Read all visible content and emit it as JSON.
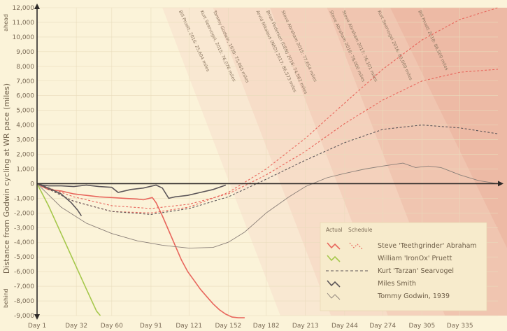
{
  "chart_data": {
    "type": "line",
    "ylabel": "Distance from Godwin cycling at WR pace (miles)",
    "ahead_label": "ahead",
    "behind_label": "behind",
    "ylim": [
      -9000,
      12000
    ],
    "yticks": [
      -9000,
      -8000,
      -7000,
      -6000,
      -5000,
      -4000,
      -3000,
      -2000,
      -1000,
      0,
      1000,
      2000,
      3000,
      4000,
      5000,
      6000,
      7000,
      8000,
      9000,
      10000,
      11000,
      12000
    ],
    "x_ticks": [
      {
        "day": 1,
        "label": "Day 1"
      },
      {
        "day": 32,
        "label": "Day 32"
      },
      {
        "day": 60,
        "label": "Day 60"
      },
      {
        "day": 91,
        "label": "Day 91"
      },
      {
        "day": 121,
        "label": "Day 121"
      },
      {
        "day": 152,
        "label": "Day 152"
      },
      {
        "day": 182,
        "label": "Day 182"
      },
      {
        "day": 213,
        "label": "Day 213"
      },
      {
        "day": 244,
        "label": "Day 244"
      },
      {
        "day": 274,
        "label": "Day 274"
      },
      {
        "day": 305,
        "label": "Day 305"
      },
      {
        "day": 335,
        "label": "Day 335"
      }
    ],
    "xlim": [
      1,
      365
    ],
    "band_labels": [
      {
        "text": "Bill Pruett, 2016: 25,604 miles",
        "day": 113
      },
      {
        "text": "Kurt Searvogel, 2015: 76,076 miles",
        "day": 130
      },
      {
        "text": "Tommy Godwin, 1939: 75,065 miles",
        "day": 140
      },
      {
        "text": "Arvid Nikolaus (NED) 2017: 86,573 miles",
        "day": 174
      },
      {
        "text": "Brian Pedersen (DEN) 2016: 74,562 miles",
        "day": 182
      },
      {
        "text": "Steve Abraham 2015: 77,654 miles",
        "day": 194
      },
      {
        "text": "Steve Abraham 2016: 78,000 miles",
        "day": 232
      },
      {
        "text": "Steve Abraham 2017: 76,101 miles",
        "day": 242
      },
      {
        "text": "Kurt Searvogel 2016: 80,000 miles",
        "day": 270
      },
      {
        "text": "Bill Pruett 2018: 86,500 miles",
        "day": 302
      }
    ],
    "bands": [
      {
        "from_day": 100,
        "to_day": 160,
        "color": "#f8e4cf"
      },
      {
        "from_day": 140,
        "to_day": 200,
        "color": "#f6d9c4"
      },
      {
        "from_day": 185,
        "to_day": 245,
        "color": "#f3ccb8"
      },
      {
        "from_day": 230,
        "to_day": 290,
        "color": "#efc0ac"
      },
      {
        "from_day": 280,
        "to_day": 365,
        "color": "#ecb6a2"
      }
    ],
    "series": [
      {
        "name": "Steve 'Teethgrinder' Abraham",
        "color": "#e8665c",
        "actual": [
          [
            1,
            0
          ],
          [
            5,
            -200
          ],
          [
            10,
            -400
          ],
          [
            20,
            -500
          ],
          [
            30,
            -700
          ],
          [
            40,
            -800
          ],
          [
            50,
            -900
          ],
          [
            60,
            -950
          ],
          [
            70,
            -1000
          ],
          [
            80,
            -1050
          ],
          [
            85,
            -1100
          ],
          [
            92,
            -950
          ],
          [
            95,
            -1300
          ],
          [
            100,
            -2200
          ],
          [
            105,
            -3200
          ],
          [
            110,
            -4200
          ],
          [
            115,
            -5200
          ],
          [
            120,
            -6000
          ],
          [
            125,
            -6600
          ],
          [
            130,
            -7200
          ],
          [
            135,
            -7700
          ],
          [
            140,
            -8200
          ],
          [
            145,
            -8600
          ],
          [
            150,
            -8900
          ],
          [
            155,
            -9100
          ],
          [
            160,
            -9150
          ],
          [
            165,
            -9150
          ]
        ],
        "schedule": [
          [
            1,
            0
          ],
          [
            30,
            -1200
          ],
          [
            60,
            -1900
          ],
          [
            91,
            -2000
          ],
          [
            121,
            -1600
          ],
          [
            152,
            -600
          ],
          [
            182,
            1000
          ],
          [
            213,
            3100
          ],
          [
            244,
            5500
          ],
          [
            274,
            7800
          ],
          [
            305,
            9800
          ],
          [
            335,
            11200
          ],
          [
            365,
            12000
          ]
        ],
        "schedule2": [
          [
            1,
            0
          ],
          [
            30,
            -900
          ],
          [
            60,
            -1500
          ],
          [
            91,
            -1700
          ],
          [
            121,
            -1400
          ],
          [
            152,
            -700
          ],
          [
            182,
            600
          ],
          [
            213,
            2200
          ],
          [
            244,
            4100
          ],
          [
            274,
            5700
          ],
          [
            305,
            7000
          ],
          [
            335,
            7600
          ],
          [
            365,
            7800
          ]
        ]
      },
      {
        "name": "William 'IronOx' Pruett",
        "color": "#a6c84c",
        "actual": [
          [
            1,
            0
          ],
          [
            10,
            -1500
          ],
          [
            20,
            -3400
          ],
          [
            30,
            -5300
          ],
          [
            40,
            -7200
          ],
          [
            48,
            -8700
          ],
          [
            51,
            -9000
          ]
        ]
      },
      {
        "name": "Kurt 'Tarzan' Searvogel",
        "color": "#5c5659",
        "schedule": [
          [
            1,
            0
          ],
          [
            30,
            -1200
          ],
          [
            60,
            -1900
          ],
          [
            91,
            -2100
          ],
          [
            121,
            -1700
          ],
          [
            152,
            -900
          ],
          [
            182,
            300
          ],
          [
            213,
            1600
          ],
          [
            244,
            2800
          ],
          [
            274,
            3700
          ],
          [
            305,
            4000
          ],
          [
            335,
            3800
          ],
          [
            365,
            3400
          ]
        ]
      },
      {
        "name": "Miles Smith",
        "color": "#5c5659",
        "actual": [
          [
            1,
            0
          ],
          [
            5,
            -100
          ],
          [
            10,
            -150
          ],
          [
            20,
            -150
          ],
          [
            30,
            -200
          ],
          [
            40,
            -100
          ],
          [
            50,
            -200
          ],
          [
            60,
            -250
          ],
          [
            65,
            -600
          ],
          [
            75,
            -400
          ],
          [
            85,
            -300
          ],
          [
            95,
            -100
          ],
          [
            100,
            -300
          ],
          [
            105,
            -1000
          ],
          [
            110,
            -900
          ],
          [
            120,
            -800
          ],
          [
            130,
            -600
          ],
          [
            140,
            -400
          ],
          [
            150,
            -100
          ]
        ],
        "actual2": [
          [
            1,
            0
          ],
          [
            10,
            -300
          ],
          [
            20,
            -700
          ],
          [
            28,
            -1300
          ],
          [
            33,
            -1800
          ],
          [
            36,
            -2200
          ]
        ]
      },
      {
        "name": "Tommy Godwin, 1939",
        "color": "#8a7f78",
        "actual": [
          [
            1,
            0
          ],
          [
            20,
            -1600
          ],
          [
            40,
            -2700
          ],
          [
            60,
            -3400
          ],
          [
            80,
            -3900
          ],
          [
            100,
            -4200
          ],
          [
            121,
            -4400
          ],
          [
            140,
            -4350
          ],
          [
            152,
            -4000
          ],
          [
            165,
            -3300
          ],
          [
            182,
            -2000
          ],
          [
            200,
            -900
          ],
          [
            213,
            -200
          ],
          [
            230,
            400
          ],
          [
            244,
            700
          ],
          [
            260,
            1000
          ],
          [
            274,
            1200
          ],
          [
            290,
            1400
          ],
          [
            300,
            1100
          ],
          [
            310,
            1200
          ],
          [
            320,
            1100
          ],
          [
            335,
            600
          ],
          [
            350,
            200
          ],
          [
            365,
            0
          ]
        ]
      }
    ],
    "legend": {
      "header_actual": "Actual",
      "header_schedule": "Schedule",
      "placement": "bottom-right"
    }
  }
}
